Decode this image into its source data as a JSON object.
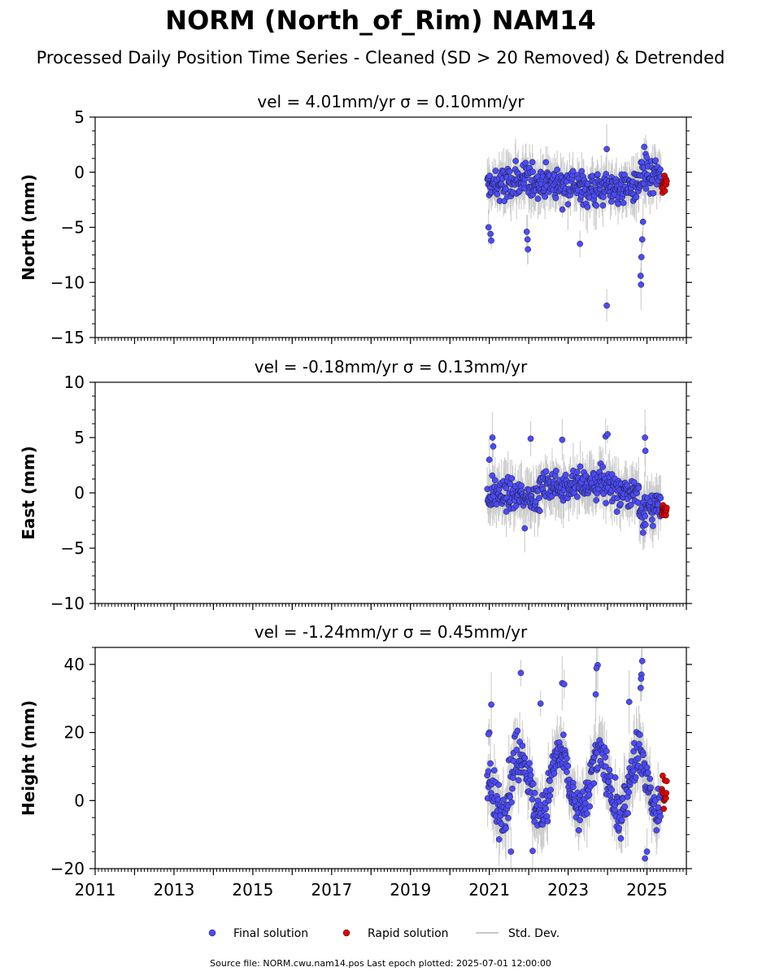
{
  "figure": {
    "title": "NORM (North_of_Rim) NAM14",
    "subtitle": "Processed Daily Position Time Series - Cleaned (SD > 20 Removed) & Detrended",
    "footer": "Source file: NORM.cwu.nam14.pos  Last epoch plotted: 2025-07-01 12:00:00",
    "legend": {
      "final_label": "Final solution",
      "rapid_label": "Rapid solution",
      "std_label": "Std. Dev."
    },
    "colors": {
      "final": "#4b4bff",
      "rapid": "#e00000",
      "std": "#c8c8c8",
      "marker_edge": "#1a1a1a"
    }
  },
  "chart_data": [
    {
      "type": "scatter",
      "panel": "north",
      "title": "vel = 4.01mm/yr   σ = 0.10mm/yr",
      "ylabel": "North (mm)",
      "xlim": [
        2011,
        2026
      ],
      "ylim": [
        -15,
        5
      ],
      "yticks": [
        5,
        0,
        -5,
        -10,
        -15
      ],
      "ytick_labels": [
        "5",
        "0",
        "−5",
        "−10",
        "−15"
      ],
      "xticks": [
        2011,
        2013,
        2015,
        2017,
        2019,
        2021,
        2023,
        2025
      ],
      "xtick_labels": [
        "2011",
        "2013",
        "2015",
        "2017",
        "2019",
        "2021",
        "2023",
        "2025"
      ],
      "final_range": [
        2020.95,
        2025.35
      ],
      "rapid_range": [
        2025.38,
        2025.5
      ],
      "series": [
        {
          "name": "Final solution",
          "segments": [
            {
              "x": [
                2020.95,
                2021.5
              ],
              "mean": -1.2,
              "spread": 1.2
            },
            {
              "x": [
                2021.5,
                2022.5
              ],
              "mean": -0.8,
              "spread": 1.1
            },
            {
              "x": [
                2022.5,
                2023.2
              ],
              "mean": -1.0,
              "spread": 1.1
            },
            {
              "x": [
                2023.2,
                2024.0
              ],
              "mean": -1.5,
              "spread": 1.2
            },
            {
              "x": [
                2024.0,
                2024.8
              ],
              "mean": -1.4,
              "spread": 1.1
            },
            {
              "x": [
                2024.8,
                2025.35
              ],
              "mean": -0.5,
              "spread": 1.3
            }
          ],
          "outliers": [
            [
              2023.98,
              -12.1
            ],
            [
              2024.85,
              -10.2
            ],
            [
              2024.84,
              -9.4
            ],
            [
              2024.86,
              -7.7
            ],
            [
              2024.88,
              -6.1
            ],
            [
              2024.9,
              -4.5
            ],
            [
              2021.05,
              -6.2
            ],
            [
              2021.03,
              -5.6
            ],
            [
              2020.98,
              -5.0
            ],
            [
              2021.98,
              -7.0
            ],
            [
              2021.97,
              -6.1
            ],
            [
              2021.95,
              -5.4
            ],
            [
              2023.3,
              -6.5
            ],
            [
              2023.98,
              2.1
            ],
            [
              2024.93,
              2.3
            ]
          ],
          "std_mean": 1.2
        },
        {
          "name": "Rapid solution",
          "mean": -1.0,
          "spread": 0.55,
          "count": 14
        }
      ]
    },
    {
      "type": "scatter",
      "panel": "east",
      "title": "vel = -0.18mm/yr   σ = 0.13mm/yr",
      "ylabel": "East (mm)",
      "xlim": [
        2011,
        2026
      ],
      "ylim": [
        -10,
        10
      ],
      "yticks": [
        10,
        5,
        0,
        -5,
        -10
      ],
      "ytick_labels": [
        "10",
        "5",
        "0",
        "−5",
        "−10"
      ],
      "xticks": [
        2011,
        2013,
        2015,
        2017,
        2019,
        2021,
        2023,
        2025
      ],
      "xtick_labels": [
        "2011",
        "2013",
        "2015",
        "2017",
        "2019",
        "2021",
        "2023",
        "2025"
      ],
      "final_range": [
        2020.95,
        2025.35
      ],
      "rapid_range": [
        2025.38,
        2025.5
      ],
      "series": [
        {
          "name": "Final solution",
          "segments": [
            {
              "x": [
                2020.95,
                2021.6
              ],
              "mean": -0.2,
              "spread": 1.0
            },
            {
              "x": [
                2021.6,
                2022.3
              ],
              "mean": -0.3,
              "spread": 0.9
            },
            {
              "x": [
                2022.3,
                2023.1
              ],
              "mean": 0.6,
              "spread": 1.0
            },
            {
              "x": [
                2023.1,
                2024.2
              ],
              "mean": 0.8,
              "spread": 1.0
            },
            {
              "x": [
                2024.2,
                2024.8
              ],
              "mean": 0.1,
              "spread": 0.9
            },
            {
              "x": [
                2024.8,
                2025.35
              ],
              "mean": -1.4,
              "spread": 1.0
            }
          ],
          "outliers": [
            [
              2021.08,
              5.0
            ],
            [
              2021.1,
              4.2
            ],
            [
              2022.05,
              4.9
            ],
            [
              2022.85,
              4.8
            ],
            [
              2023.95,
              5.1
            ],
            [
              2024.0,
              5.3
            ],
            [
              2024.95,
              5.0
            ],
            [
              2024.96,
              3.8
            ],
            [
              2021.0,
              3.0
            ],
            [
              2021.9,
              -3.2
            ],
            [
              2024.9,
              -3.6
            ]
          ],
          "std_mean": 1.3
        },
        {
          "name": "Rapid solution",
          "mean": -1.6,
          "spread": 0.6,
          "count": 14
        }
      ]
    },
    {
      "type": "scatter",
      "panel": "height",
      "title": "vel = -1.24mm/yr   σ = 0.45mm/yr",
      "ylabel": "Height (mm)",
      "xlim": [
        2011,
        2026
      ],
      "ylim": [
        -20,
        45
      ],
      "yticks": [
        40,
        20,
        0,
        -20
      ],
      "ytick_labels": [
        "40",
        "20",
        "0",
        "−20"
      ],
      "xticks": [
        2011,
        2013,
        2015,
        2017,
        2019,
        2021,
        2023,
        2025
      ],
      "xtick_labels": [
        "2011",
        "2013",
        "2015",
        "2017",
        "2019",
        "2021",
        "2023",
        "2025"
      ],
      "final_range": [
        2020.95,
        2025.35
      ],
      "rapid_range": [
        2025.38,
        2025.5
      ],
      "series": [
        {
          "name": "Final solution",
          "seasonal": {
            "offset": 5,
            "amplitude": 9,
            "peak_phase": 0.78
          },
          "spread": 5.0,
          "outliers": [
            [
              2021.05,
              28.2
            ],
            [
              2021.8,
              37.5
            ],
            [
              2022.85,
              34.5
            ],
            [
              2022.9,
              34.2
            ],
            [
              2023.75,
              39.8
            ],
            [
              2023.72,
              38.9
            ],
            [
              2023.7,
              31.2
            ],
            [
              2024.88,
              41.0
            ],
            [
              2024.86,
              37.0
            ],
            [
              2024.85,
              35.8
            ],
            [
              2024.84,
              33.1
            ],
            [
              2022.1,
              -14.8
            ],
            [
              2021.55,
              -15.0
            ],
            [
              2024.95,
              -17.0
            ],
            [
              2025.0,
              -15.0
            ],
            [
              2021.0,
              20.0
            ],
            [
              2020.98,
              19.5
            ],
            [
              2024.55,
              29.0
            ],
            [
              2022.3,
              28.5
            ]
          ],
          "std_mean": 5.0
        },
        {
          "name": "Rapid solution",
          "mean": 1.5,
          "spread": 3.5,
          "count": 14
        }
      ]
    }
  ]
}
